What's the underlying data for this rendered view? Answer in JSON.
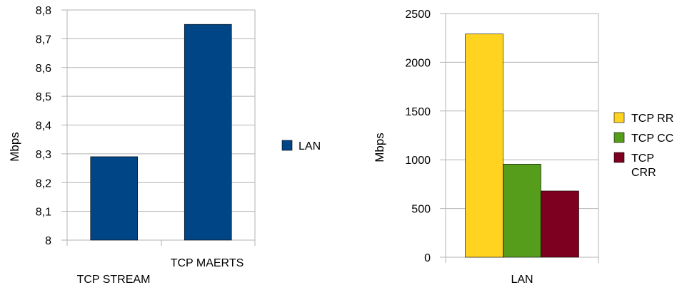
{
  "chart_data": [
    {
      "type": "bar",
      "title": "",
      "xlabel": "",
      "ylabel": "Mbps",
      "ylim": [
        8,
        8.8
      ],
      "yticks": [
        "8",
        "8,1",
        "8,2",
        "8,3",
        "8,4",
        "8,5",
        "8,6",
        "8,7",
        "8,8"
      ],
      "categories": [
        "TCP STREAM",
        "TCP MAERTS"
      ],
      "series": [
        {
          "name": "LAN",
          "color": "#004586",
          "values": [
            8.29,
            8.75
          ]
        }
      ],
      "grid": true,
      "legend_position": "right"
    },
    {
      "type": "bar",
      "title": "",
      "xlabel": "",
      "ylabel": "Mbps",
      "ylim": [
        0,
        2500
      ],
      "yticks": [
        "0",
        "500",
        "1000",
        "1500",
        "2000",
        "2500"
      ],
      "categories": [
        "LAN"
      ],
      "series": [
        {
          "name": "TCP RR",
          "color": "#ffd320",
          "values": [
            2290
          ]
        },
        {
          "name": "TCP CC",
          "color": "#579d1c",
          "values": [
            955
          ]
        },
        {
          "name": "TCP CRR",
          "color": "#7e0021",
          "values": [
            680
          ]
        }
      ],
      "grid": true,
      "legend_position": "right"
    }
  ]
}
